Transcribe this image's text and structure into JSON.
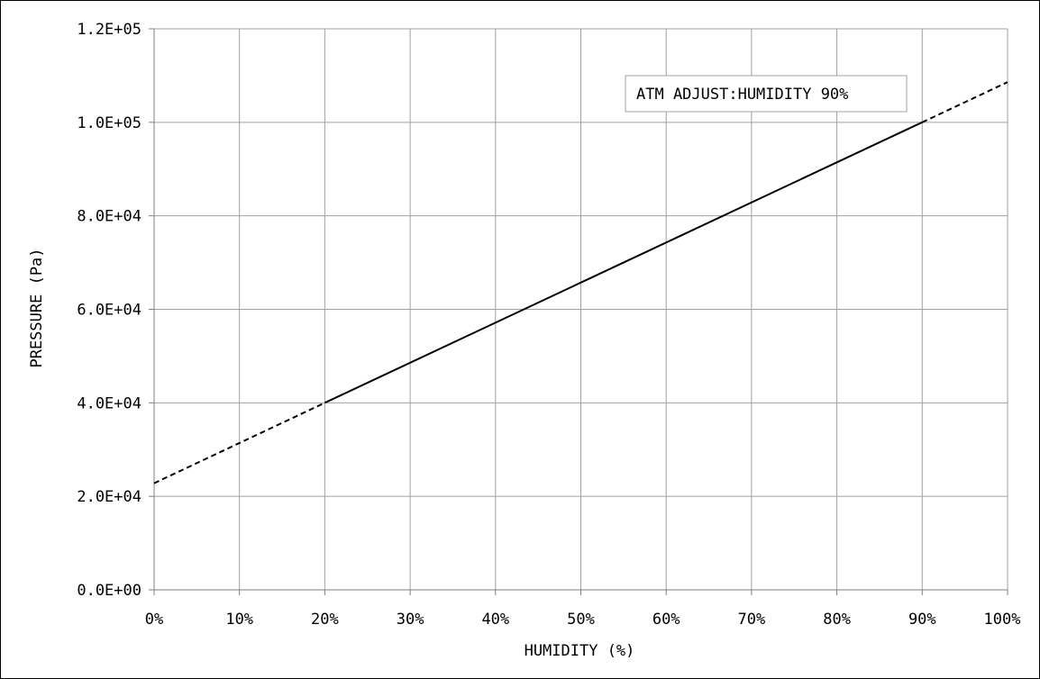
{
  "chart_data": {
    "type": "line",
    "title": "",
    "xlabel": "HUMIDITY (%)",
    "ylabel": "PRESSURE (Pa)",
    "xlim": [
      0,
      100
    ],
    "ylim": [
      0,
      120000
    ],
    "grid": true,
    "x_ticks": [
      0,
      10,
      20,
      30,
      40,
      50,
      60,
      70,
      80,
      90,
      100
    ],
    "x_tick_labels": [
      "0%",
      "10%",
      "20%",
      "30%",
      "40%",
      "50%",
      "60%",
      "70%",
      "80%",
      "90%",
      "100%"
    ],
    "y_ticks": [
      0,
      20000,
      40000,
      60000,
      80000,
      100000,
      120000
    ],
    "y_tick_labels": [
      "0.0E+00",
      "2.0E+04",
      "4.0E+04",
      "6.0E+04",
      "8.0E+04",
      "1.0E+05",
      "1.2E+05"
    ],
    "segments": [
      {
        "style": "dashed",
        "x": [
          0,
          20
        ],
        "y": [
          22800,
          40000
        ]
      },
      {
        "style": "solid",
        "x": [
          20,
          90
        ],
        "y": [
          40000,
          100000
        ]
      },
      {
        "style": "dashed",
        "x": [
          90,
          100
        ],
        "y": [
          100000,
          108600
        ]
      }
    ],
    "annotation": {
      "text": "ATM ADJUST:HUMIDITY 90%"
    },
    "colors": {
      "line": "#000000",
      "grid": "#a0a0a0",
      "axis": "#808080"
    }
  }
}
